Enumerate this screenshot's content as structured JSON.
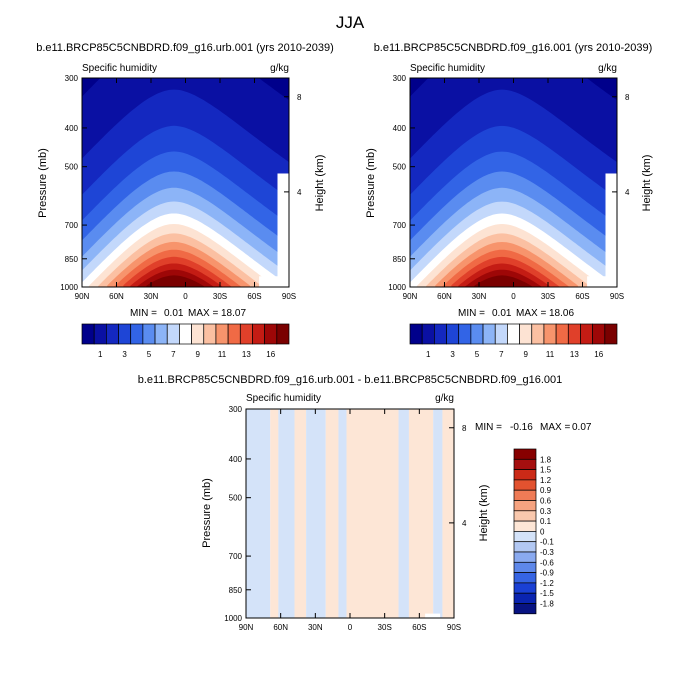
{
  "page_title": "JJA",
  "colors": {
    "abs_scale": [
      "#00008b",
      "#0a10a3",
      "#1428c0",
      "#1e45d6",
      "#3264e6",
      "#5a8cf0",
      "#8cb4f7",
      "#c3d8fb",
      "#ffffff",
      "#fde3d3",
      "#fbc0a2",
      "#f7946c",
      "#f06a45",
      "#e0402a",
      "#c41c14",
      "#9e0707",
      "#7a0000"
    ],
    "diff_scale": [
      "#081382",
      "#0a24b0",
      "#1a40d4",
      "#3664e3",
      "#5e88ea",
      "#8aaaf0",
      "#b2c8f3",
      "#d4e3f9",
      "#fde6d6",
      "#f9c8ad",
      "#f6a380",
      "#ef7b56",
      "#e2522f",
      "#cb2a17",
      "#a50f0f",
      "#870000"
    ]
  },
  "chart_data": [
    {
      "id": "left",
      "type": "heatmap",
      "title": "b.e11.BRCP85C5CNBDRD.f09_g16.urb.001 (yrs 2010-2039)",
      "left_string": "Specific humidity",
      "right_string": "g/kg",
      "ylabel": "Pressure (mb)",
      "ylabel_right": "Height (km)",
      "x_tick_labels": [
        "90N",
        "60N",
        "30N",
        "0",
        "30S",
        "60S",
        "90S"
      ],
      "x_tick_values": [
        90,
        60,
        30,
        0,
        -30,
        -60,
        -90
      ],
      "y_tick_labels": [
        "300",
        "400",
        "500",
        "700",
        "850",
        "1000"
      ],
      "y_tick_values": [
        300,
        400,
        500,
        700,
        850,
        1000
      ],
      "right_tick_labels": [
        "8",
        "4"
      ],
      "right_tick_values": [
        8,
        4
      ],
      "min_label": "MIN =",
      "min_value": "0.01",
      "max_label": "MAX =",
      "max_value": "18.07",
      "peak_value": 18.07,
      "peak_lat": 10,
      "colorbar_labels": [
        "1",
        "3",
        "5",
        "7",
        "9",
        "11",
        "13",
        "16"
      ],
      "colorbar_levels": [
        1,
        2,
        3,
        4,
        5,
        6,
        7,
        8,
        9,
        10,
        11,
        12,
        13,
        14,
        15,
        16
      ]
    },
    {
      "id": "right",
      "type": "heatmap",
      "title": "b.e11.BRCP85C5CNBDRD.f09_g16.001 (yrs 2010-2039)",
      "left_string": "Specific humidity",
      "right_string": "g/kg",
      "ylabel": "Pressure (mb)",
      "ylabel_right": "Height (km)",
      "x_tick_labels": [
        "90N",
        "60N",
        "30N",
        "0",
        "30S",
        "60S",
        "90S"
      ],
      "x_tick_values": [
        90,
        60,
        30,
        0,
        -30,
        -60,
        -90
      ],
      "y_tick_labels": [
        "300",
        "400",
        "500",
        "700",
        "850",
        "1000"
      ],
      "y_tick_values": [
        300,
        400,
        500,
        700,
        850,
        1000
      ],
      "right_tick_labels": [
        "8",
        "4"
      ],
      "right_tick_values": [
        8,
        4
      ],
      "min_label": "MIN =",
      "min_value": "0.01",
      "max_label": "MAX =",
      "max_value": "18.06",
      "peak_value": 18.06,
      "peak_lat": 10,
      "colorbar_labels": [
        "1",
        "3",
        "5",
        "7",
        "9",
        "11",
        "13",
        "16"
      ],
      "colorbar_levels": [
        1,
        2,
        3,
        4,
        5,
        6,
        7,
        8,
        9,
        10,
        11,
        12,
        13,
        14,
        15,
        16
      ]
    },
    {
      "id": "diff",
      "type": "heatmap",
      "title": "b.e11.BRCP85C5CNBDRD.f09_g16.urb.001 - b.e11.BRCP85C5CNBDRD.f09_g16.001",
      "left_string": "Specific humidity",
      "right_string": "g/kg",
      "ylabel": "Pressure (mb)",
      "ylabel_right": "Height (km)",
      "x_tick_labels": [
        "90N",
        "60N",
        "30N",
        "0",
        "30S",
        "60S",
        "90S"
      ],
      "x_tick_values": [
        90,
        60,
        30,
        0,
        -30,
        -60,
        -90
      ],
      "y_tick_labels": [
        "300",
        "400",
        "500",
        "700",
        "850",
        "1000"
      ],
      "y_tick_values": [
        300,
        400,
        500,
        700,
        850,
        1000
      ],
      "right_tick_labels": [
        "8",
        "4"
      ],
      "right_tick_values": [
        8,
        4
      ],
      "min_label": "MIN =",
      "min_value": "-0.16",
      "max_label": "MAX =",
      "max_value": "0.07",
      "colorbar_labels": [
        "1.8",
        "1.5",
        "1.2",
        "0.9",
        "0.6",
        "0.3",
        "0.1",
        "0",
        "-0.1",
        "-0.3",
        "-0.6",
        "-0.9",
        "-1.2",
        "-1.5",
        "-1.8"
      ],
      "value_bands": [
        {
          "lat_from": 90,
          "lat_to": 69,
          "class": "-0.1"
        },
        {
          "lat_from": 69,
          "lat_to": 62,
          "class": "0"
        },
        {
          "lat_from": 62,
          "lat_to": 48,
          "class": "-0.1"
        },
        {
          "lat_from": 48,
          "lat_to": 38,
          "class": "0"
        },
        {
          "lat_from": 38,
          "lat_to": 21,
          "class": "-0.1"
        },
        {
          "lat_from": 21,
          "lat_to": 10,
          "class": "0"
        },
        {
          "lat_from": 10,
          "lat_to": 3,
          "class": "-0.1"
        },
        {
          "lat_from": 3,
          "lat_to": -42,
          "class": "0"
        },
        {
          "lat_from": -42,
          "lat_to": -51,
          "class": "-0.1"
        },
        {
          "lat_from": -51,
          "lat_to": -72,
          "class": "0"
        },
        {
          "lat_from": -72,
          "lat_to": -80,
          "class": "-0.1"
        },
        {
          "lat_from": -80,
          "lat_to": -90,
          "class": "0"
        }
      ]
    }
  ]
}
